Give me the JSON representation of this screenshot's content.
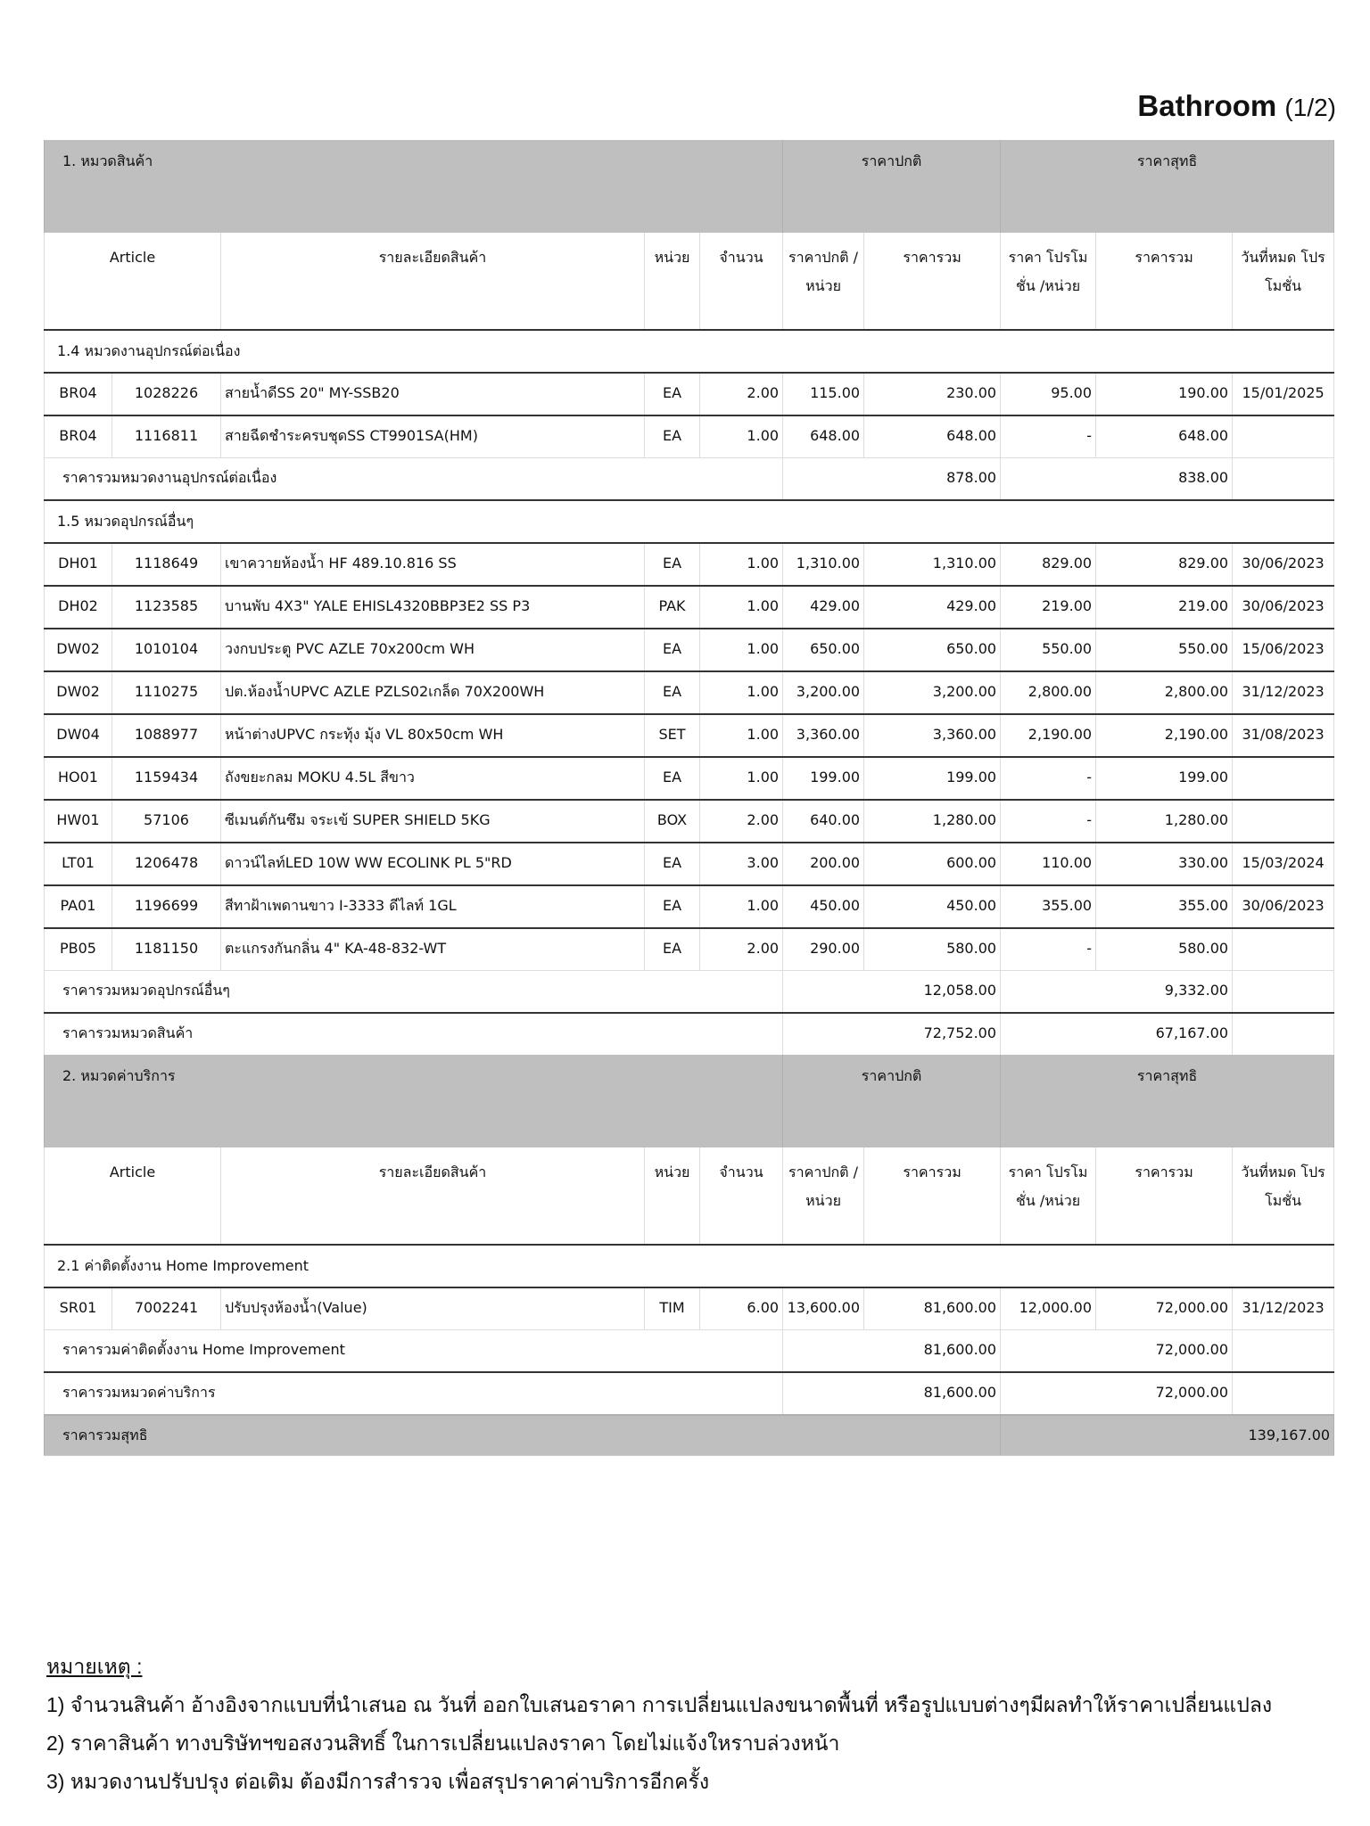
{
  "title": {
    "main": "Bathroom",
    "page": "(1/2)"
  },
  "columns": {
    "article": "Article",
    "description": "รายละเอียดสินค้า",
    "unit": "หน่วย",
    "qty": "จำนวน",
    "unit_price": "ราคาปกติ /หน่วย",
    "total": "ราคารวม",
    "promo_price": "ราคา โปรโมชั่น /หน่วย",
    "net_total": "ราคารวม",
    "promo_end": "วันที่หมด โปรโมชั่น"
  },
  "band_labels": {
    "normal": "ราคาปกติ",
    "net": "ราคาสุทธิ"
  },
  "sections": [
    {
      "title": "1. หมวดสินค้า",
      "groups": [
        {
          "title": "1.4 หมวดงานอุปกรณ์ต่อเนื่อง",
          "rows": [
            [
              "BR04",
              "1028226",
              "สายน้ำดีSS 20\" MY-SSB20",
              "EA",
              "2.00",
              "115.00",
              "230.00",
              "95.00",
              "190.00",
              "15/01/2025"
            ],
            [
              "BR04",
              "1116811",
              "สายฉีดชำระครบชุดSS CT9901SA(HM)",
              "EA",
              "1.00",
              "648.00",
              "648.00",
              "-",
              "648.00",
              ""
            ]
          ],
          "subtotal": {
            "label": "ราคารวมหมวดงานอุปกรณ์ต่อเนื่อง",
            "total": "878.00",
            "net": "838.00"
          }
        },
        {
          "title": "1.5 หมวดอุปกรณ์อื่นๆ",
          "rows": [
            [
              "DH01",
              "1118649",
              "เขาควายห้องน้ำ HF 489.10.816 SS",
              "EA",
              "1.00",
              "1,310.00",
              "1,310.00",
              "829.00",
              "829.00",
              "30/06/2023"
            ],
            [
              "DH02",
              "1123585",
              "บานพับ 4X3\" YALE EHISL4320BBP3E2 SS P3",
              "PAK",
              "1.00",
              "429.00",
              "429.00",
              "219.00",
              "219.00",
              "30/06/2023"
            ],
            [
              "DW02",
              "1010104",
              "วงกบประตู PVC AZLE 70x200cm WH",
              "EA",
              "1.00",
              "650.00",
              "650.00",
              "550.00",
              "550.00",
              "15/06/2023"
            ],
            [
              "DW02",
              "1110275",
              "ปต.ห้องน้ำUPVC AZLE PZLS02เกล็ด 70X200WH",
              "EA",
              "1.00",
              "3,200.00",
              "3,200.00",
              "2,800.00",
              "2,800.00",
              "31/12/2023"
            ],
            [
              "DW04",
              "1088977",
              "หน้าต่างUPVC กระทุ้ง มุ้ง VL 80x50cm WH",
              "SET",
              "1.00",
              "3,360.00",
              "3,360.00",
              "2,190.00",
              "2,190.00",
              "31/08/2023"
            ],
            [
              "HO01",
              "1159434",
              "ถังขยะกลม MOKU 4.5L สีขาว",
              "EA",
              "1.00",
              "199.00",
              "199.00",
              "-",
              "199.00",
              ""
            ],
            [
              "HW01",
              "57106",
              "ซีเมนต์กันซึม จระเข้ SUPER SHIELD 5KG",
              "BOX",
              "2.00",
              "640.00",
              "1,280.00",
              "-",
              "1,280.00",
              ""
            ],
            [
              "LT01",
              "1206478",
              "ดาวน์ไลท์LED 10W WW ECOLINK PL 5\"RD",
              "EA",
              "3.00",
              "200.00",
              "600.00",
              "110.00",
              "330.00",
              "15/03/2024"
            ],
            [
              "PA01",
              "1196699",
              "สีทาฝ้าเพดานขาว I-3333 ดีไลท์ 1GL",
              "EA",
              "1.00",
              "450.00",
              "450.00",
              "355.00",
              "355.00",
              "30/06/2023"
            ],
            [
              "PB05",
              "1181150",
              "ตะแกรงกันกลิ่น 4\" KA-48-832-WT",
              "EA",
              "2.00",
              "290.00",
              "580.00",
              "-",
              "580.00",
              ""
            ]
          ],
          "subtotal": {
            "label": "ราคารวมหมวดอุปกรณ์อื่นๆ",
            "total": "12,058.00",
            "net": "9,332.00"
          }
        }
      ],
      "total": {
        "label": "ราคารวมหมวดสินค้า",
        "total": "72,752.00",
        "net": "67,167.00"
      }
    },
    {
      "title": "2. หมวดค่าบริการ",
      "groups": [
        {
          "title": "2.1 ค่าติดตั้งงาน Home Improvement",
          "rows": [
            [
              "SR01",
              "7002241",
              "ปรับปรุงห้องน้ำ(Value)",
              "TIM",
              "6.00",
              "13,600.00",
              "81,600.00",
              "12,000.00",
              "72,000.00",
              "31/12/2023"
            ]
          ],
          "subtotal": {
            "label": "ราคารวมค่าติดตั้งงาน Home Improvement",
            "total": "81,600.00",
            "net": "72,000.00"
          }
        }
      ],
      "total": {
        "label": "ราคารวมหมวดค่าบริการ",
        "total": "81,600.00",
        "net": "72,000.00"
      }
    }
  ],
  "grand_total": {
    "label": "ราคารวมสุทธิ",
    "value": "139,167.00"
  },
  "notes": {
    "heading": "หมายเหตุ :",
    "items": [
      "1) จำนวนสินค้า อ้างอิงจากแบบที่นำเสนอ ณ วันที่ ออกใบเสนอราคา การเปลี่ยนแปลงขนาดพื้นที่ หรือรูปแบบต่างๆมีผลทำให้ราคาเปลี่ยนแปลง",
      "2) ราคาสินค้า ทางบริษัทฯขอสงวนสิทธิ์ ในการเปลี่ยนแปลงราคา โดยไม่แจ้งใหราบล่วงหน้า",
      "3) หมวดงานปรับปรุง ต่อเติม ต้องมีการสำรวจ เพื่อสรุปราคาค่าบริการอีกครั้ง"
    ]
  }
}
